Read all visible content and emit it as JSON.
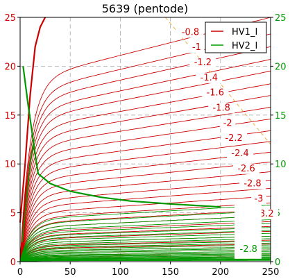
{
  "chart_data": {
    "type": "line",
    "title": "5639 (pentode)",
    "xlabel": "",
    "ylabel_left": "",
    "ylabel_right": "",
    "xlim": [
      0,
      250
    ],
    "ylim_left": [
      0,
      25
    ],
    "ylim_right": [
      0,
      25
    ],
    "x_ticks": [
      "0",
      "50",
      "100",
      "150",
      "200",
      "250"
    ],
    "y_ticks_left": [
      "0",
      "5",
      "10",
      "15",
      "20",
      "25"
    ],
    "y_ticks_right": [
      "0",
      "5",
      "10",
      "15",
      "20",
      "25"
    ],
    "grid": true,
    "legend": {
      "placement": "top-right",
      "entries": [
        {
          "name": "HV1_I",
          "color": "#cc0000"
        },
        {
          "name": "HV2_I",
          "color": "#009900"
        }
      ]
    },
    "colors": {
      "series1": "#cc0000",
      "series2": "#009900",
      "load_line": "#f0b040"
    },
    "families": [
      {
        "name": "HV1_I",
        "color": "#cc0000",
        "label_color": "#cc0000",
        "label_values": [
          "-0.8",
          "-1",
          "-1.2",
          "-1.4",
          "-1.6",
          "-1.8",
          "-2",
          "-2.2",
          "-2.4",
          "-2.6",
          "-2.8",
          "-3",
          "-3.2"
        ],
        "knee_x": 18,
        "plateau_right_y": [
          25.0,
          23.3,
          22.0,
          20.7,
          19.5,
          18.2,
          17.0,
          15.8,
          14.6,
          13.4,
          12.3,
          11.2,
          10.2,
          9.2,
          8.3,
          7.5,
          6.7,
          6.0,
          5.3,
          4.7,
          4.1,
          3.6,
          3.1,
          2.6,
          2.2,
          1.8,
          1.5,
          1.2,
          0.9,
          0.7,
          0.5
        ]
      },
      {
        "name": "HV2_I",
        "color": "#009900",
        "label_color": "#009900",
        "label_values": [
          "-2.8"
        ],
        "knee_x": 18,
        "plateau_right_y": [
          5.8,
          5.2,
          4.7,
          4.3,
          3.9,
          3.5,
          3.2,
          2.9,
          2.6,
          2.35,
          2.1,
          1.9,
          1.7,
          1.5,
          1.35,
          1.2,
          1.05,
          0.9,
          0.8,
          0.7,
          0.6,
          0.5,
          0.42,
          0.35,
          0.28,
          0.22,
          0.17,
          0.12
        ]
      }
    ],
    "labeled_curve": {
      "name": "HV2_I",
      "label": "-2.8",
      "x_end": 200,
      "y_end": 5.6
    },
    "load_line": {
      "x": [
        145,
        250
      ],
      "y": [
        25,
        12
      ]
    },
    "heavy_red": {
      "x": [
        0,
        5,
        10,
        15,
        20,
        25
      ],
      "y": [
        4.0,
        10.0,
        17.0,
        22.0,
        24.0,
        25.0
      ]
    },
    "heavy_green": {
      "x": [
        3,
        8,
        15,
        18,
        30,
        50,
        80,
        110,
        150,
        200
      ],
      "y": [
        20.0,
        16.0,
        11.0,
        9.0,
        8.0,
        7.2,
        6.6,
        6.2,
        5.9,
        5.6
      ]
    }
  }
}
